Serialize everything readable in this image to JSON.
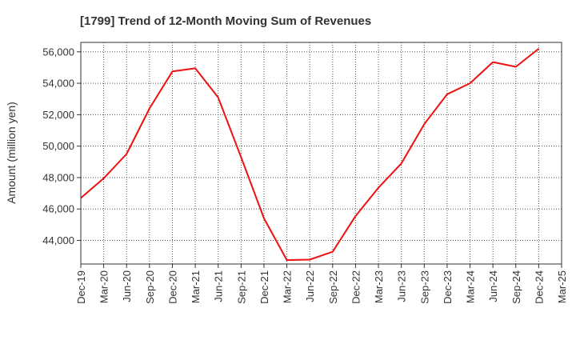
{
  "chart_data": {
    "type": "line",
    "title": "[1799]  Trend of 12-Month Moving Sum of Revenues",
    "ylabel": "Amount (million yen)",
    "xlabel": "",
    "categories": [
      "Dec-19",
      "Mar-20",
      "Jun-20",
      "Sep-20",
      "Dec-20",
      "Mar-21",
      "Jun-21",
      "Sep-21",
      "Dec-21",
      "Mar-22",
      "Jun-22",
      "Sep-22",
      "Dec-22",
      "Mar-23",
      "Jun-23",
      "Sep-23",
      "Dec-23",
      "Mar-24",
      "Jun-24",
      "Sep-24",
      "Dec-24",
      "Mar-25"
    ],
    "yticks": [
      "44,000",
      "46,000",
      "48,000",
      "50,000",
      "52,000",
      "54,000",
      "56,000"
    ],
    "ytick_values": [
      44000,
      46000,
      48000,
      50000,
      52000,
      54000,
      56000
    ],
    "ylim": [
      42500,
      56600
    ],
    "grid": true,
    "series": [
      {
        "color": "#ee1111",
        "values": [
          46700,
          47950,
          49500,
          52400,
          54750,
          54950,
          53100,
          49300,
          45400,
          42750,
          42780,
          43280,
          45550,
          47350,
          48900,
          51400,
          53300,
          54000,
          55350,
          55050,
          56200,
          null
        ]
      }
    ]
  }
}
